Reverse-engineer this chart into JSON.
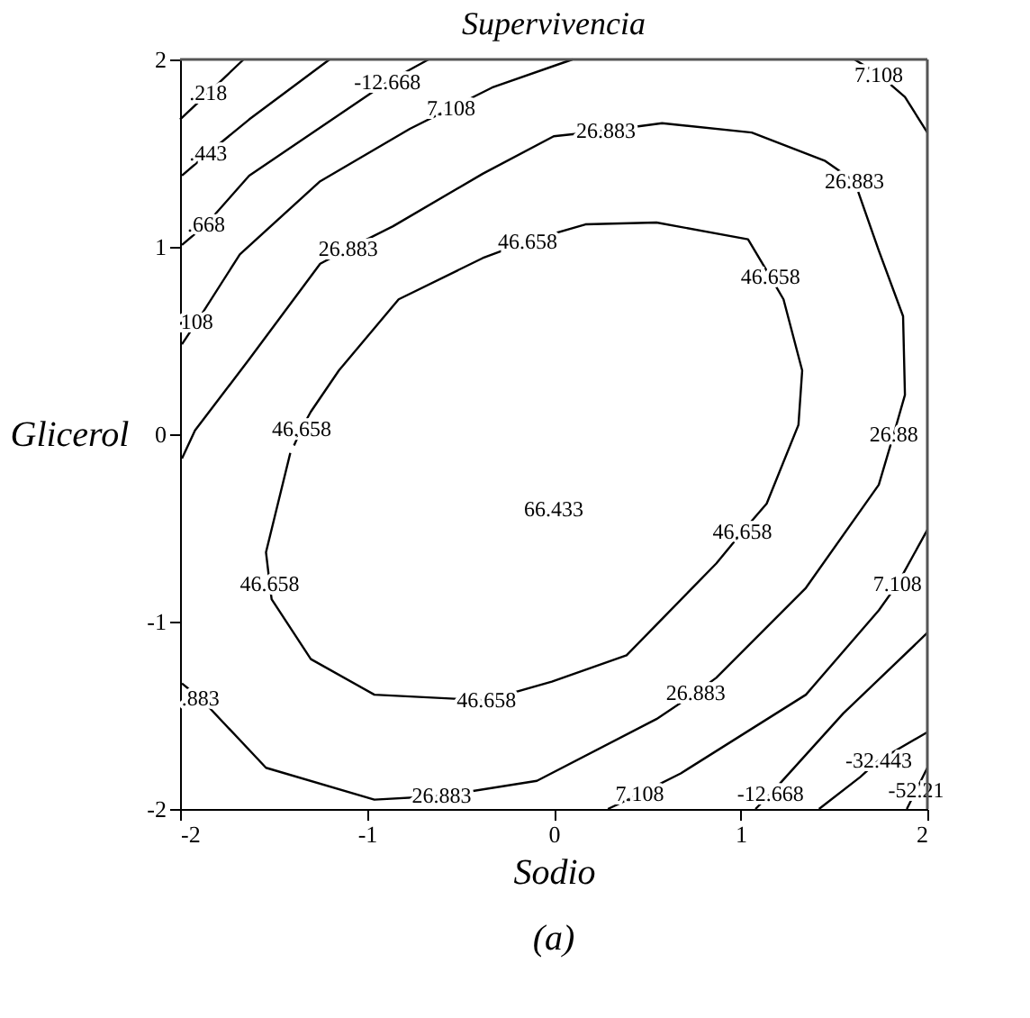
{
  "chart_data": {
    "type": "line",
    "title": "Supervivencia",
    "xlabel": "Sodio",
    "ylabel": "Glicerol",
    "xlim": [
      -2,
      2
    ],
    "ylim": [
      -2,
      2
    ],
    "xticks": [
      -2,
      -1,
      0,
      1,
      2
    ],
    "yticks": [
      -2,
      -1,
      0,
      1,
      2
    ],
    "grid": false,
    "marker": "none",
    "line_style": "solid",
    "series": [
      {
        "color": "#000000",
        "x": [
          -1.41,
          -1.54,
          -1.52,
          -1.51,
          -1.3,
          -0.96,
          -0.36,
          -0.01,
          0.39,
          0.87,
          1.01,
          1.14,
          1.31,
          1.33,
          1.23,
          1.16,
          1.04,
          0.55,
          0.17,
          -0.14,
          -0.38,
          -0.83,
          -1.15,
          -1.3,
          -1.35,
          -1.39
        ],
        "values": [
          -0.1,
          -0.63,
          -0.8,
          -0.88,
          -1.2,
          -1.39,
          -1.42,
          -1.32,
          -1.18,
          -0.69,
          -0.52,
          -0.37,
          0.05,
          0.34,
          0.72,
          0.84,
          1.04,
          1.13,
          1.12,
          1.03,
          0.94,
          0.72,
          0.34,
          0.12,
          0.03,
          -0.06
        ]
      },
      {
        "color": "#000000",
        "x": [
          -1.99,
          -1.92,
          -1.63,
          -1.25,
          -1.1,
          -0.86,
          -0.38,
          0.0,
          0.28,
          0.58,
          1.06,
          1.45,
          1.61,
          1.74,
          1.87,
          1.88,
          1.82,
          1.74,
          1.35,
          0.87,
          0.76,
          0.55,
          -0.09,
          -0.6,
          -0.96,
          -1.54,
          -1.89,
          -1.99
        ],
        "values": [
          -0.13,
          0.02,
          0.4,
          0.91,
          0.99,
          1.11,
          1.39,
          1.59,
          1.62,
          1.66,
          1.61,
          1.46,
          1.35,
          0.98,
          0.63,
          0.21,
          0.0,
          -0.27,
          -0.82,
          -1.3,
          -1.38,
          -1.52,
          -1.85,
          -1.93,
          -1.95,
          -1.78,
          -1.41,
          -1.33
        ]
      },
      {
        "color": "#000000",
        "x": [
          -1.99,
          -1.91,
          -1.68,
          -1.25,
          -0.77,
          -0.55,
          -0.33,
          0.1
        ],
        "values": [
          0.48,
          0.6,
          0.96,
          1.35,
          1.63,
          1.74,
          1.85,
          2.0
        ]
      },
      {
        "color": "#000000",
        "x": [
          1.61,
          1.74,
          1.88,
          2.0
        ],
        "values": [
          2.0,
          1.92,
          1.8,
          1.61
        ]
      },
      {
        "color": "#000000",
        "x": [
          2.0,
          1.84,
          1.74,
          1.35,
          0.68,
          0.46,
          0.29
        ],
        "values": [
          -0.51,
          -0.8,
          -0.94,
          -1.39,
          -1.81,
          -1.92,
          -2.0
        ]
      },
      {
        "color": "#000000",
        "x": [
          2.0,
          1.55,
          1.16,
          1.08
        ],
        "values": [
          -1.06,
          -1.49,
          -1.92,
          -2.0
        ]
      },
      {
        "color": "#000000",
        "x": [
          2.0,
          1.74,
          1.64,
          1.42
        ],
        "values": [
          -1.59,
          -1.74,
          -1.83,
          -2.0
        ]
      },
      {
        "color": "#000000",
        "x": [
          2.0,
          1.94,
          1.89
        ],
        "values": [
          -1.78,
          -1.9,
          -2.0
        ]
      },
      {
        "color": "#000000",
        "x": [
          -1.99,
          -1.86,
          -1.63,
          -0.89,
          -0.67
        ],
        "values": [
          1.01,
          1.12,
          1.38,
          1.88,
          2.0
        ]
      },
      {
        "color": "#000000",
        "x": [
          -1.99,
          -1.85,
          -1.63,
          -1.2
        ],
        "values": [
          1.38,
          1.5,
          1.68,
          2.0
        ]
      },
      {
        "color": "#000000",
        "x": [
          -2.0,
          -1.85,
          -1.66
        ],
        "values": [
          1.68,
          1.82,
          2.0
        ]
      }
    ],
    "annotations": [
      "66.433",
      {
        "text": "46.658",
        "x": -0.14,
        "y": 1.03
      },
      {
        "text": "46.658",
        "x": 1.16,
        "y": 0.84
      },
      {
        "text": "46.658",
        "x": -1.35,
        "y": 0.03
      },
      {
        "text": "46.658",
        "x": -1.52,
        "y": -0.8
      },
      {
        "text": "46.658",
        "x": -0.36,
        "y": -1.42
      },
      {
        "text": "46.658",
        "x": 1.01,
        "y": -0.52
      },
      {
        "text": "26.883",
        "x": 0.28,
        "y": 1.62
      },
      {
        "text": "26.883",
        "x": 1.61,
        "y": 1.35
      },
      {
        "text": "26.883",
        "x": -1.1,
        "y": 0.99
      },
      {
        "text": "26.883",
        "x": 0.76,
        "y": -1.38
      },
      {
        "text": "26.883",
        "x": -0.6,
        "y": -1.93
      },
      {
        "text": ".883",
        "x": -1.89,
        "y": -1.41
      },
      {
        "text": "26.88",
        "x": 1.82,
        "y": 0.0
      },
      {
        "text": "7.108",
        "x": -0.55,
        "y": 1.74
      },
      {
        "text": "108",
        "x": -1.91,
        "y": 0.6
      },
      {
        "text": "7.108",
        "x": 1.74,
        "y": 1.92
      },
      {
        "text": "7.108",
        "x": 1.84,
        "y": -0.8
      },
      {
        "text": "7.108",
        "x": 0.46,
        "y": -1.92
      },
      {
        "text": "-12.668",
        "x": 1.16,
        "y": -1.92
      },
      {
        "text": "-12.668",
        "x": -0.89,
        "y": 1.88
      },
      {
        "text": ".668",
        "x": -1.86,
        "y": 1.12
      },
      {
        "text": "-32.443",
        "x": 1.74,
        "y": -1.74
      },
      {
        "text": ".443",
        "x": -1.85,
        "y": 1.5
      },
      {
        "text": "-52.21",
        "x": 1.94,
        "y": -1.9
      },
      {
        "text": ".218",
        "x": -1.85,
        "y": 1.82
      },
      "(a)"
    ]
  }
}
